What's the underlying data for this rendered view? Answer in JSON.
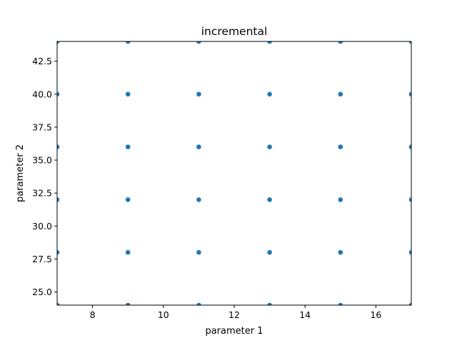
{
  "chart_data": {
    "type": "scatter",
    "title": "incremental",
    "xlabel": "parameter 1",
    "ylabel": "parameter 2",
    "xlim": [
      7,
      17
    ],
    "ylim": [
      24,
      44
    ],
    "xticks": [
      8,
      10,
      12,
      14,
      16
    ],
    "xtick_labels": [
      "8",
      "10",
      "12",
      "14",
      "16"
    ],
    "yticks": [
      25.0,
      27.5,
      30.0,
      32.5,
      35.0,
      37.5,
      40.0,
      42.5
    ],
    "ytick_labels": [
      "25.0",
      "27.5",
      "30.0",
      "32.5",
      "35.0",
      "37.5",
      "40.0",
      "42.5"
    ],
    "grid": false,
    "marker_color": "#1f77b4",
    "points": [
      {
        "x": 7,
        "y": 24
      },
      {
        "x": 7,
        "y": 28
      },
      {
        "x": 7,
        "y": 32
      },
      {
        "x": 7,
        "y": 36
      },
      {
        "x": 7,
        "y": 40
      },
      {
        "x": 7,
        "y": 44
      },
      {
        "x": 9,
        "y": 24
      },
      {
        "x": 9,
        "y": 28
      },
      {
        "x": 9,
        "y": 32
      },
      {
        "x": 9,
        "y": 36
      },
      {
        "x": 9,
        "y": 40
      },
      {
        "x": 9,
        "y": 44
      },
      {
        "x": 11,
        "y": 24
      },
      {
        "x": 11,
        "y": 28
      },
      {
        "x": 11,
        "y": 32
      },
      {
        "x": 11,
        "y": 36
      },
      {
        "x": 11,
        "y": 40
      },
      {
        "x": 11,
        "y": 44
      },
      {
        "x": 13,
        "y": 24
      },
      {
        "x": 13,
        "y": 28
      },
      {
        "x": 13,
        "y": 32
      },
      {
        "x": 13,
        "y": 36
      },
      {
        "x": 13,
        "y": 40
      },
      {
        "x": 13,
        "y": 44
      },
      {
        "x": 15,
        "y": 24
      },
      {
        "x": 15,
        "y": 28
      },
      {
        "x": 15,
        "y": 32
      },
      {
        "x": 15,
        "y": 36
      },
      {
        "x": 15,
        "y": 40
      },
      {
        "x": 15,
        "y": 44
      },
      {
        "x": 17,
        "y": 24
      },
      {
        "x": 17,
        "y": 28
      },
      {
        "x": 17,
        "y": 32
      },
      {
        "x": 17,
        "y": 36
      },
      {
        "x": 17,
        "y": 40
      },
      {
        "x": 17,
        "y": 44
      }
    ]
  }
}
